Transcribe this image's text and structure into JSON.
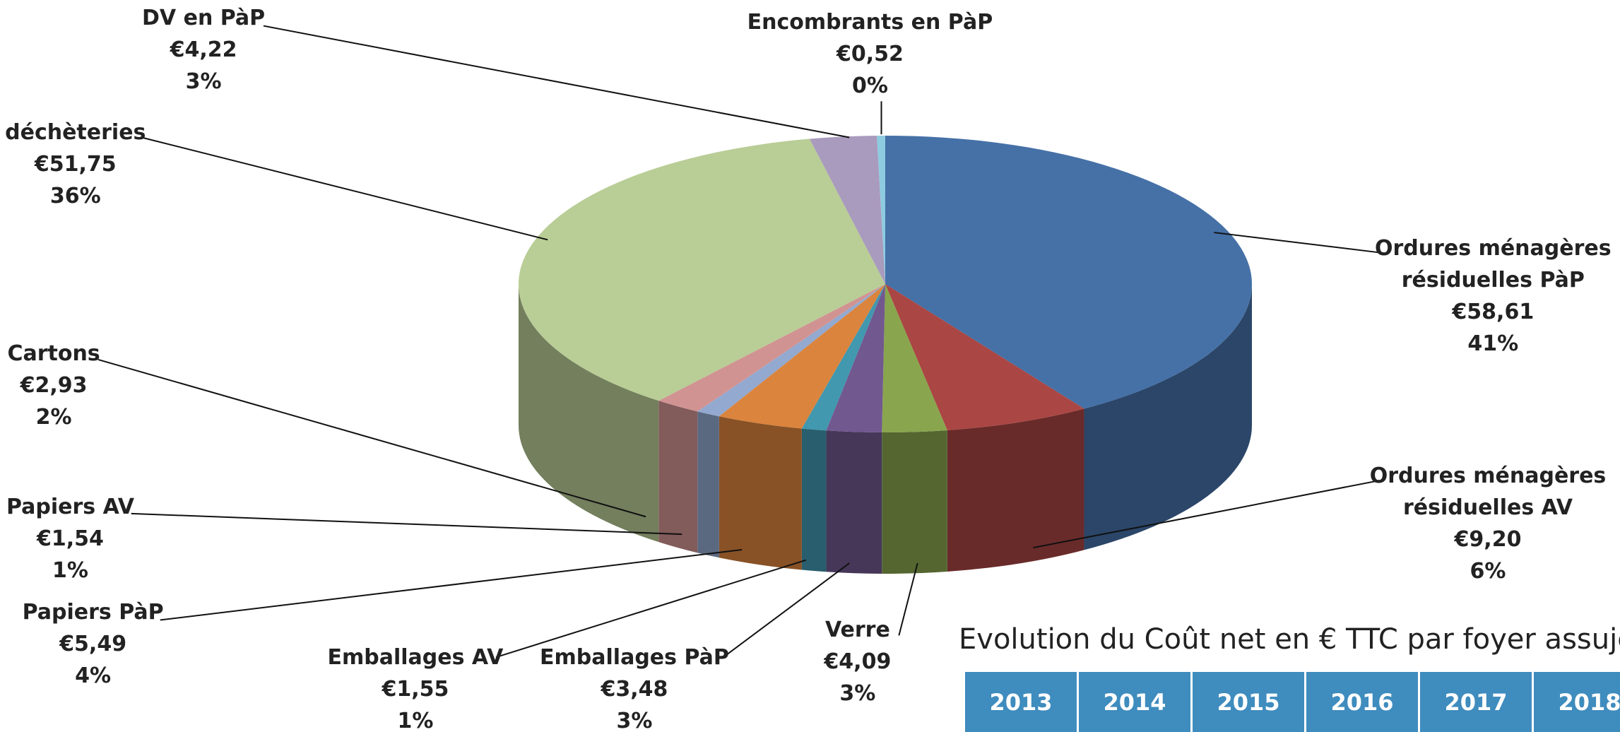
{
  "chart_data": {
    "type": "pie3d",
    "categories": [
      "Ordures ménagères résiduelles PàP",
      "Ordures ménagères résiduelles AV",
      "Verre",
      "Emballages PàP",
      "Emballages AV",
      "Papiers PàP",
      "Papiers AV",
      "Cartons",
      "déchèteries",
      "DV en PàP",
      "Encombrants en PàP"
    ],
    "values": [
      58.61,
      9.2,
      4.09,
      3.48,
      1.55,
      5.49,
      1.54,
      2.93,
      51.75,
      4.22,
      0.52
    ],
    "value_labels": [
      "€58,61",
      "€9,20",
      "€4,09",
      "€3,48",
      "€1,55",
      "€5,49",
      "€1,54",
      "€2,93",
      "€51,75",
      "€4,22",
      "€0,52"
    ],
    "percent_labels": [
      "41%",
      "6%",
      "3%",
      "3%",
      "1%",
      "4%",
      "1%",
      "2%",
      "36%",
      "3%",
      "0%"
    ],
    "colors": [
      "#4571a7",
      "#aa4643",
      "#89a54e",
      "#71588f",
      "#4198af",
      "#db843d",
      "#93a9cf",
      "#d19392",
      "#b9cd96",
      "#a99bbd",
      "#8ecbe0"
    ]
  },
  "table": {
    "title": "Evolution du Coût net en € TTC par foyer assujet",
    "columns": [
      "2013",
      "2014",
      "2015",
      "2016",
      "2017",
      "2018"
    ]
  }
}
